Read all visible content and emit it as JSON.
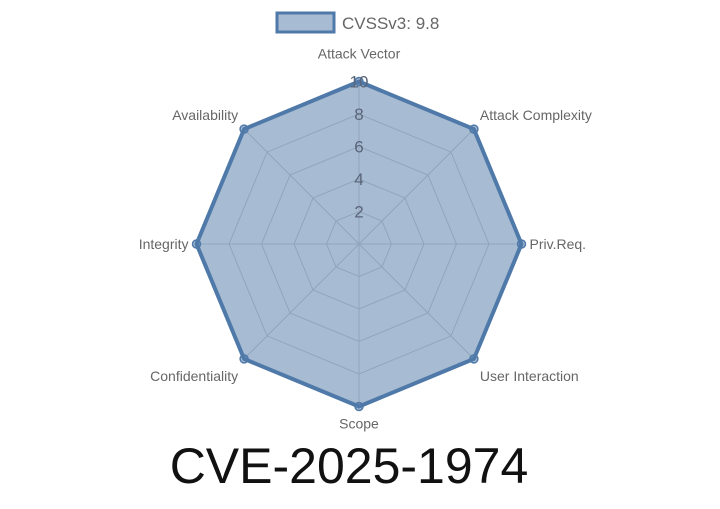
{
  "chart_data": {
    "type": "radar",
    "title": "CVE-2025-1974",
    "legend": {
      "label": "CVSSv3: 9.8",
      "placement": "top"
    },
    "categories": [
      "Attack Vector",
      "Attack Complexity",
      "Priv.Req.",
      "User Interaction",
      "Scope",
      "Confidentiality",
      "Integrity",
      "Availability"
    ],
    "series": [
      {
        "name": "CVSSv3: 9.8",
        "values": [
          10,
          10,
          10,
          10,
          10,
          10,
          10,
          10
        ]
      }
    ],
    "rlim": [
      0,
      10
    ],
    "ticks": [
      "2",
      "4",
      "6",
      "8",
      "10"
    ],
    "grid": true,
    "colors": {
      "line": "#4f79a8",
      "fill": "rgba(79,121,168,0.5)",
      "grid": "#d0d0d0",
      "text": "#666666",
      "tick": "#5a6478"
    }
  }
}
